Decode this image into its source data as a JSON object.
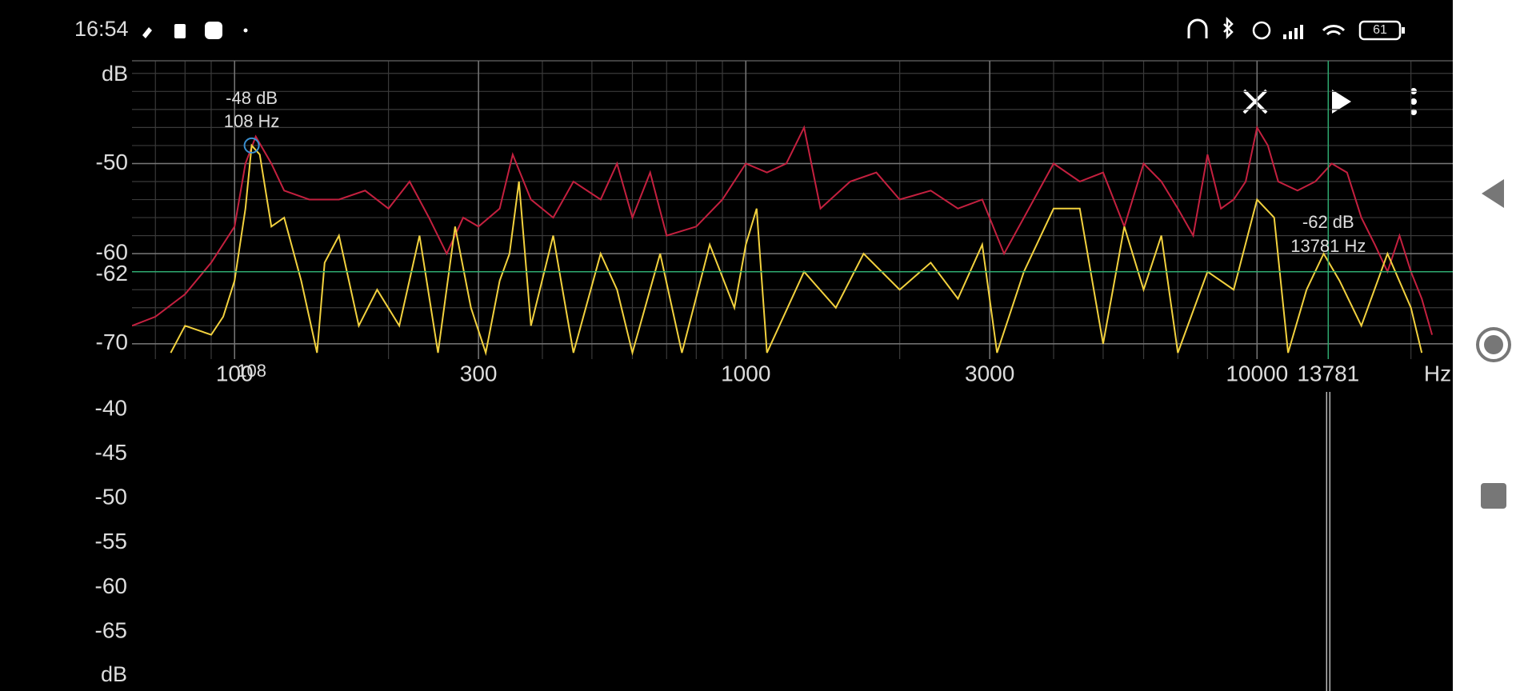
{
  "status_bar": {
    "time": "16:54",
    "battery": "61"
  },
  "chart_data": {
    "type": "line",
    "xscale": "log",
    "grid": true,
    "x_unit": "Hz",
    "y_unit": "dB",
    "xlim": [
      63,
      24150
    ],
    "ylim": [
      -71.7,
      -38.6
    ],
    "xticks": [
      100,
      300,
      1000,
      3000,
      10000
    ],
    "yticks": [
      -50,
      -60,
      -70
    ],
    "series": [
      {
        "color": "#c4203f",
        "x": [
          63,
          70,
          80,
          90,
          100,
          105,
          110,
          118,
          125,
          140,
          160,
          180,
          200,
          220,
          240,
          260,
          280,
          300,
          330,
          350,
          380,
          420,
          460,
          520,
          560,
          600,
          650,
          700,
          800,
          900,
          1000,
          1100,
          1200,
          1300,
          1400,
          1600,
          1800,
          2000,
          2300,
          2600,
          2900,
          3200,
          3500,
          4000,
          4500,
          5000,
          5500,
          6000,
          6500,
          7000,
          7500,
          8000,
          8500,
          9000,
          9500,
          10000,
          10500,
          11000,
          12000,
          13000,
          14000,
          15000,
          16000,
          17000,
          18000,
          19000,
          20000,
          21000,
          22000
        ],
        "values": [
          -68,
          -67,
          -64.5,
          -61,
          -57,
          -50,
          -47,
          -50,
          -53,
          -54,
          -54,
          -53,
          -55,
          -52,
          -56,
          -60,
          -56,
          -57,
          -55,
          -49,
          -54,
          -56,
          -52,
          -54,
          -50,
          -56,
          -51,
          -58,
          -57,
          -54,
          -50,
          -51,
          -50,
          -46,
          -55,
          -52,
          -51,
          -54,
          -53,
          -55,
          -54,
          -60,
          -56,
          -50,
          -52,
          -51,
          -57,
          -50,
          -52,
          -55,
          -58,
          -49,
          -55,
          -54,
          -52,
          -46,
          -48,
          -52,
          -53,
          -52,
          -50,
          -51,
          -56,
          -59,
          -62,
          -58,
          -62,
          -65,
          -69
        ]
      },
      {
        "color": "#f2d13e",
        "x": [
          75,
          80,
          90,
          95,
          100,
          105,
          108,
          112,
          118,
          125,
          135,
          145,
          150,
          160,
          175,
          190,
          210,
          230,
          250,
          270,
          290,
          310,
          330,
          345,
          360,
          380,
          420,
          460,
          520,
          560,
          600,
          680,
          750,
          850,
          950,
          1000,
          1050,
          1100,
          1300,
          1500,
          1700,
          2000,
          2300,
          2600,
          2900,
          3100,
          3500,
          4000,
          4500,
          5000,
          5500,
          6000,
          6500,
          7000,
          8000,
          9000,
          10000,
          10800,
          11500,
          12500,
          13500,
          14500,
          16000,
          18000,
          20000,
          21000
        ],
        "values": [
          -71,
          -68,
          -69,
          -67,
          -63,
          -55,
          -48,
          -49,
          -57,
          -56,
          -63,
          -71,
          -61,
          -58,
          -68,
          -64,
          -68,
          -58,
          -71,
          -57,
          -66,
          -71,
          -63,
          -60,
          -52,
          -68,
          -58,
          -71,
          -60,
          -64,
          -71,
          -60,
          -71,
          -59,
          -66,
          -59,
          -55,
          -71,
          -62,
          -66,
          -60,
          -64,
          -61,
          -65,
          -59,
          -71,
          -62,
          -55,
          -55,
          -70,
          -57,
          -64,
          -58,
          -71,
          -62,
          -64,
          -54,
          -56,
          -71,
          -64,
          -60,
          -63,
          -68,
          -60,
          -66,
          -71
        ]
      }
    ],
    "peak": {
      "color": "#3a8fd0",
      "db": {
        "value": -48,
        "label": "-48 dB"
      },
      "hz": {
        "value": 108,
        "label": "108 Hz"
      }
    },
    "cursor": {
      "color": "#2eaa70",
      "db": {
        "value": -62,
        "label": "-62 dB"
      },
      "hz": {
        "value": 13781,
        "label": "13781 Hz"
      }
    }
  },
  "spectrogram": {
    "unit": "dB",
    "ticks": [
      -40,
      -45,
      -50,
      -55,
      -60,
      -65
    ],
    "colors": [
      "#ffffff",
      "#efe3a2",
      "#efaaa2",
      "#cf73a3",
      "#6f62a8",
      "#33506f"
    ]
  }
}
